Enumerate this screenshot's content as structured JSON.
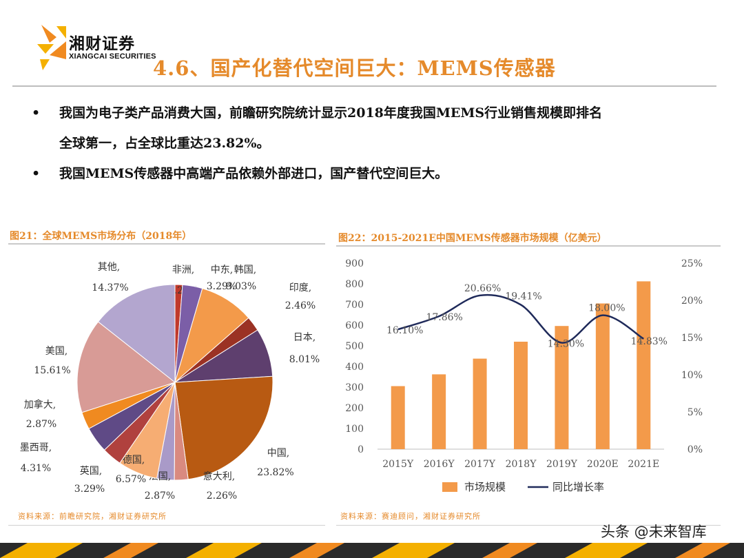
{
  "header": {
    "logo_cn": "湘财证券",
    "logo_en": "XIANGCAI SECURITIES",
    "title": "4.6、国产化替代空间巨大：MEMS传感器"
  },
  "bullets": [
    {
      "marker": "•",
      "line1": "我国为电子类产品消费大国，前瞻研究院统计显示2018年度我国MEMS行业销售规模即排名",
      "line2": "全球第一，占全球比重达23.82%。"
    },
    {
      "marker": "•",
      "line1": "我国MEMS传感器中高端产品依赖外部进口，国产替代空间巨大。"
    }
  ],
  "pie_chart": {
    "title": "图21：全球MEMS市场分布（2018年）",
    "source": "资料来源：前瞻研究院，湘财证券研究所"
  },
  "bar_chart": {
    "title": "图22：2015-2021E中国MEMS传感器市场规模（亿美元）",
    "source": "资料来源：赛迪顾问，湘财证券研究所"
  },
  "chart_data": [
    {
      "type": "pie",
      "title": "图21：全球MEMS市场分布（2018年）",
      "slices": [
        {
          "label": "非洲,",
          "value": 1.23,
          "value_label": "1.23%",
          "color": "#c0392b"
        },
        {
          "label": "中东,",
          "value": 3.29,
          "value_label": "3.29%",
          "color": "#7b5ea7"
        },
        {
          "label": "韩国,",
          "value": 9.03,
          "value_label": "9.03%",
          "color": "#f39a4a"
        },
        {
          "label": "印度,",
          "value": 2.46,
          "value_label": "2.46%",
          "color": "#9b3224"
        },
        {
          "label": "日本,",
          "value": 8.01,
          "value_label": "8.01%",
          "color": "#5e3f6e"
        },
        {
          "label": "中国,",
          "value": 23.82,
          "value_label": "23.82%",
          "color": "#b85a12"
        },
        {
          "label": "意大利,",
          "value": 2.26,
          "value_label": "2.26%",
          "color": "#d98a80"
        },
        {
          "label": "法国,",
          "value": 2.87,
          "value_label": "2.87%",
          "color": "#a99ac8"
        },
        {
          "label": "德国,",
          "value": 6.57,
          "value_label": "6.57%",
          "color": "#f6ad73"
        },
        {
          "label": "英国,",
          "value": 3.29,
          "value_label": "3.29%",
          "color": "#b0413e"
        },
        {
          "label": "墨西哥,",
          "value": 4.31,
          "value_label": "4.31%",
          "color": "#5f4a86"
        },
        {
          "label": "加拿大,",
          "value": 2.87,
          "value_label": "2.87%",
          "color": "#f08a20"
        },
        {
          "label": "美国,",
          "value": 15.61,
          "value_label": "15.61%",
          "color": "#d89b96"
        },
        {
          "label": "其他,",
          "value": 14.37,
          "value_label": "14.37%",
          "color": "#b3a6cf"
        }
      ]
    },
    {
      "type": "bar",
      "title": "图22：2015-2021E中国MEMS传感器市场规模（亿美元）",
      "categories": [
        "2015Y",
        "2016Y",
        "2017Y",
        "2018Y",
        "2019Y",
        "2020E",
        "2021E"
      ],
      "series": [
        {
          "name": "市场规模",
          "type": "bar",
          "axis": "left",
          "color": "#f39a4a",
          "values": [
            305,
            362,
            438,
            520,
            596,
            705,
            812
          ]
        },
        {
          "name": "同比增长率",
          "type": "line",
          "axis": "right",
          "color": "#1f2a5a",
          "values": [
            16.1,
            17.86,
            20.66,
            19.41,
            14.3,
            18.0,
            14.83
          ],
          "labels": [
            "16.10%",
            "17.86%",
            "20.66%",
            "19.41%",
            "14.30%",
            "18.00%",
            "14.83%"
          ]
        }
      ],
      "y_left": {
        "min": 0,
        "max": 900,
        "ticks": [
          "0",
          "100",
          "200",
          "300",
          "400",
          "500",
          "600",
          "700",
          "800",
          "900"
        ]
      },
      "y_right": {
        "min": 0,
        "max": 25,
        "ticks": [
          "0%",
          "5%",
          "10%",
          "15%",
          "20%",
          "25%"
        ]
      },
      "grid": false,
      "legend_position": "bottom"
    }
  ],
  "watermark": {
    "text": "头条 @未来智库"
  },
  "colors": {
    "accent": "#e58a2b",
    "bar": "#f39a4a",
    "line": "#1f2a5a"
  }
}
